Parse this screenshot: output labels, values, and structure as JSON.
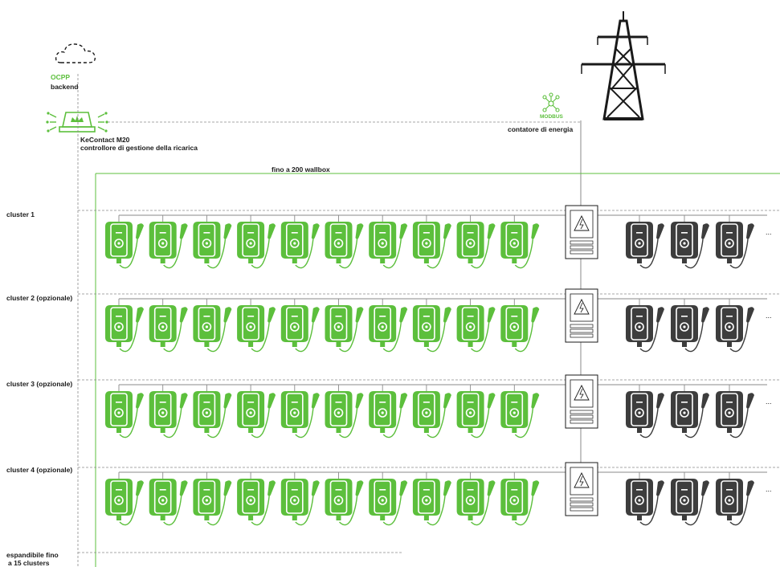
{
  "backend": {
    "protocol": "OCPP",
    "label": "backend"
  },
  "controller": {
    "name": "KeContact M20",
    "description": "controllore di gestione della ricarica"
  },
  "meter": {
    "protocol": "MODBUS",
    "label": "contatore di energia"
  },
  "network": {
    "label": "fino a 200 wallbox"
  },
  "clusters": [
    {
      "label": "cluster 1"
    },
    {
      "label": "cluster 2 (opzionale)"
    },
    {
      "label": "cluster 3 (opzionale)"
    },
    {
      "label": "cluster 4 (opzionale)"
    }
  ],
  "expand": {
    "line1": "espandibile fino",
    "line2": "a 15 clusters"
  },
  "colors": {
    "accent": "#5cbf3c",
    "dark": "#3d3d3d",
    "line": "#8a8a8a"
  },
  "wallboxes": {
    "green_per_cluster": 10,
    "dark_per_cluster": 3
  }
}
